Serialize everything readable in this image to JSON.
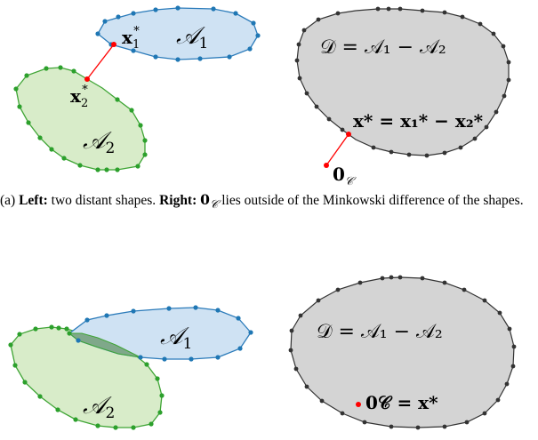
{
  "figure": {
    "panel_a": {
      "left": {
        "shape_a1": {
          "fill": "#cfe2f3",
          "stroke": "#2b7bba",
          "vertex_color": "#1f77b4",
          "label_symbol": "𝒜",
          "label_subscript": "1"
        },
        "shape_a2": {
          "fill": "#d8ecc9",
          "stroke": "#3fa535",
          "vertex_color": "#2ca02c",
          "label_symbol": "𝒜",
          "label_subscript": "2"
        },
        "x1_label_base": "x",
        "x1_label_sub": "1",
        "x1_label_sup": "*",
        "x2_label_base": "x",
        "x2_label_sub": "2",
        "x2_label_sup": "*",
        "connector_color": "#ff0000"
      },
      "right": {
        "shape_d": {
          "fill": "#d4d4d4",
          "stroke": "#333333",
          "vertex_color": "#333333"
        },
        "d_label": "𝒟 = 𝒜₁ − 𝒜₂",
        "x_star_label": "x* = x₁* − x₂*",
        "origin_label_base": "0",
        "origin_label_sub": "𝒞",
        "origin_color": "#ff0000"
      },
      "caption_prefix": "(a) ",
      "caption_left_bold": "Left:",
      "caption_left_text": " two distant shapes. ",
      "caption_right_bold": "Right:",
      "caption_origin": "0",
      "caption_origin_sub": "𝒞",
      "caption_rest": " lies outside of the Minkowski difference of the shapes."
    },
    "panel_b": {
      "left": {
        "shape_a1_label_symbol": "𝒜",
        "shape_a1_label_subscript": "1",
        "shape_a2_label_symbol": "𝒜",
        "shape_a2_label_subscript": "2",
        "overlap_fill": "#7fa88a"
      },
      "right": {
        "d_label": "𝒟 = 𝒜₁ − 𝒜₂",
        "origin_label": "0𝒞 = x*"
      }
    }
  }
}
